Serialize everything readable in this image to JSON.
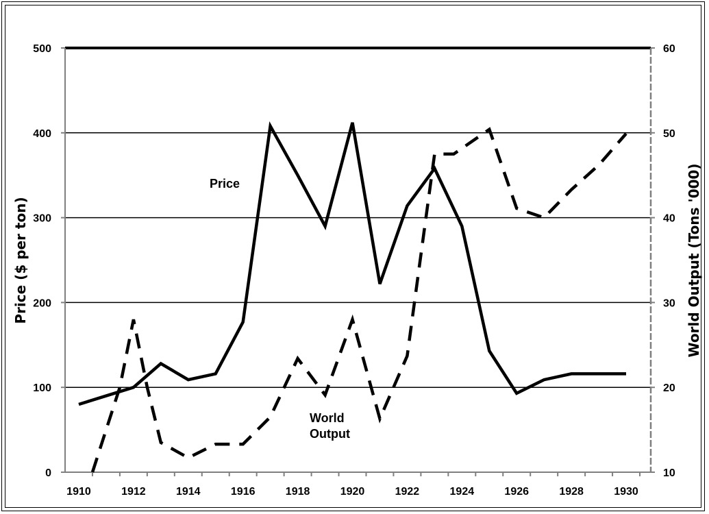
{
  "chart_data": {
    "type": "line",
    "title": "",
    "xlabel": "",
    "ylabel_left": "Price ($ per ton)",
    "ylabel_right": "World Output (Tons '000)",
    "xlim": [
      1909.5,
      1930.9
    ],
    "ylim_left": [
      0,
      500
    ],
    "ylim_right": [
      10,
      60
    ],
    "x_ticks": [
      1910,
      1912,
      1914,
      1916,
      1918,
      1920,
      1922,
      1924,
      1926,
      1928,
      1930
    ],
    "y_left_ticks": [
      0,
      100,
      200,
      300,
      400,
      500
    ],
    "y_right_ticks": [
      10,
      20,
      30,
      40,
      50,
      60
    ],
    "grid": "horizontal",
    "legend": "none",
    "series": [
      {
        "name": "Price",
        "axis": "left",
        "style": "solid",
        "points": [
          [
            1910,
            80
          ],
          [
            1912,
            100
          ],
          [
            1913,
            128
          ],
          [
            1914,
            109
          ],
          [
            1915,
            116
          ],
          [
            1916,
            177
          ],
          [
            1917,
            408
          ],
          [
            1918,
            350
          ],
          [
            1919,
            290
          ],
          [
            1920,
            412
          ],
          [
            1921,
            222
          ],
          [
            1922,
            314
          ],
          [
            1923,
            358
          ],
          [
            1924,
            290
          ],
          [
            1925,
            143
          ],
          [
            1926,
            93
          ],
          [
            1927,
            109
          ],
          [
            1928,
            116
          ],
          [
            1929,
            116
          ],
          [
            1930,
            116
          ]
        ]
      },
      {
        "name": "World Output",
        "axis": "right",
        "style": "dashed",
        "points": [
          [
            1910.5,
            10
          ],
          [
            1911.5,
            20
          ],
          [
            1912,
            28
          ],
          [
            1912.5,
            20
          ],
          [
            1913,
            13.5
          ],
          [
            1914,
            11.7
          ],
          [
            1915,
            13.3
          ],
          [
            1916,
            13.3
          ],
          [
            1917,
            16.5
          ],
          [
            1918,
            23.4
          ],
          [
            1919,
            19.1
          ],
          [
            1920,
            28
          ],
          [
            1921,
            16.3
          ],
          [
            1922,
            23.7
          ],
          [
            1923,
            47.5
          ],
          [
            1923.7,
            47.5
          ],
          [
            1925,
            50.4
          ],
          [
            1926,
            41.1
          ],
          [
            1927,
            40
          ],
          [
            1928,
            43.3
          ],
          [
            1929,
            46.2
          ],
          [
            1930,
            49.9
          ]
        ]
      }
    ],
    "annotations": [
      {
        "text": "Price"
      },
      {
        "text_line1": "World",
        "text_line2": "Output"
      }
    ]
  }
}
